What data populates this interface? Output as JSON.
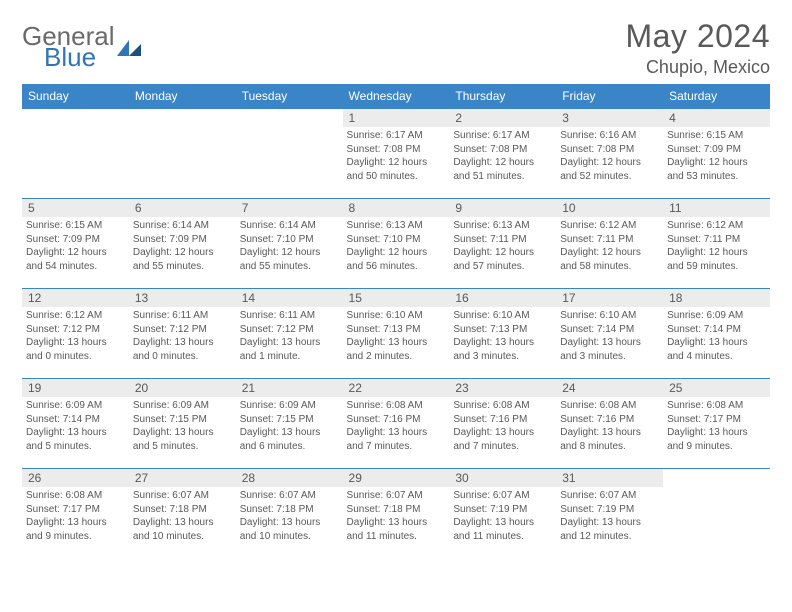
{
  "brand": {
    "general": "General",
    "blue": "Blue"
  },
  "title": "May 2024",
  "location": "Chupio, Mexico",
  "colors": {
    "header_bg": "#3a85c8",
    "header_text": "#ffffff",
    "daynum_bg": "#ececec",
    "border": "#3a85c8",
    "text": "#595959",
    "logo_blue": "#2f76b8"
  },
  "weekdays": [
    "Sunday",
    "Monday",
    "Tuesday",
    "Wednesday",
    "Thursday",
    "Friday",
    "Saturday"
  ],
  "weeks": [
    [
      {
        "empty": true
      },
      {
        "empty": true
      },
      {
        "empty": true
      },
      {
        "day": "1",
        "sunrise": "Sunrise: 6:17 AM",
        "sunset": "Sunset: 7:08 PM",
        "d1": "Daylight: 12 hours",
        "d2": "and 50 minutes."
      },
      {
        "day": "2",
        "sunrise": "Sunrise: 6:17 AM",
        "sunset": "Sunset: 7:08 PM",
        "d1": "Daylight: 12 hours",
        "d2": "and 51 minutes."
      },
      {
        "day": "3",
        "sunrise": "Sunrise: 6:16 AM",
        "sunset": "Sunset: 7:08 PM",
        "d1": "Daylight: 12 hours",
        "d2": "and 52 minutes."
      },
      {
        "day": "4",
        "sunrise": "Sunrise: 6:15 AM",
        "sunset": "Sunset: 7:09 PM",
        "d1": "Daylight: 12 hours",
        "d2": "and 53 minutes."
      }
    ],
    [
      {
        "day": "5",
        "sunrise": "Sunrise: 6:15 AM",
        "sunset": "Sunset: 7:09 PM",
        "d1": "Daylight: 12 hours",
        "d2": "and 54 minutes."
      },
      {
        "day": "6",
        "sunrise": "Sunrise: 6:14 AM",
        "sunset": "Sunset: 7:09 PM",
        "d1": "Daylight: 12 hours",
        "d2": "and 55 minutes."
      },
      {
        "day": "7",
        "sunrise": "Sunrise: 6:14 AM",
        "sunset": "Sunset: 7:10 PM",
        "d1": "Daylight: 12 hours",
        "d2": "and 55 minutes."
      },
      {
        "day": "8",
        "sunrise": "Sunrise: 6:13 AM",
        "sunset": "Sunset: 7:10 PM",
        "d1": "Daylight: 12 hours",
        "d2": "and 56 minutes."
      },
      {
        "day": "9",
        "sunrise": "Sunrise: 6:13 AM",
        "sunset": "Sunset: 7:11 PM",
        "d1": "Daylight: 12 hours",
        "d2": "and 57 minutes."
      },
      {
        "day": "10",
        "sunrise": "Sunrise: 6:12 AM",
        "sunset": "Sunset: 7:11 PM",
        "d1": "Daylight: 12 hours",
        "d2": "and 58 minutes."
      },
      {
        "day": "11",
        "sunrise": "Sunrise: 6:12 AM",
        "sunset": "Sunset: 7:11 PM",
        "d1": "Daylight: 12 hours",
        "d2": "and 59 minutes."
      }
    ],
    [
      {
        "day": "12",
        "sunrise": "Sunrise: 6:12 AM",
        "sunset": "Sunset: 7:12 PM",
        "d1": "Daylight: 13 hours",
        "d2": "and 0 minutes."
      },
      {
        "day": "13",
        "sunrise": "Sunrise: 6:11 AM",
        "sunset": "Sunset: 7:12 PM",
        "d1": "Daylight: 13 hours",
        "d2": "and 0 minutes."
      },
      {
        "day": "14",
        "sunrise": "Sunrise: 6:11 AM",
        "sunset": "Sunset: 7:12 PM",
        "d1": "Daylight: 13 hours",
        "d2": "and 1 minute."
      },
      {
        "day": "15",
        "sunrise": "Sunrise: 6:10 AM",
        "sunset": "Sunset: 7:13 PM",
        "d1": "Daylight: 13 hours",
        "d2": "and 2 minutes."
      },
      {
        "day": "16",
        "sunrise": "Sunrise: 6:10 AM",
        "sunset": "Sunset: 7:13 PM",
        "d1": "Daylight: 13 hours",
        "d2": "and 3 minutes."
      },
      {
        "day": "17",
        "sunrise": "Sunrise: 6:10 AM",
        "sunset": "Sunset: 7:14 PM",
        "d1": "Daylight: 13 hours",
        "d2": "and 3 minutes."
      },
      {
        "day": "18",
        "sunrise": "Sunrise: 6:09 AM",
        "sunset": "Sunset: 7:14 PM",
        "d1": "Daylight: 13 hours",
        "d2": "and 4 minutes."
      }
    ],
    [
      {
        "day": "19",
        "sunrise": "Sunrise: 6:09 AM",
        "sunset": "Sunset: 7:14 PM",
        "d1": "Daylight: 13 hours",
        "d2": "and 5 minutes."
      },
      {
        "day": "20",
        "sunrise": "Sunrise: 6:09 AM",
        "sunset": "Sunset: 7:15 PM",
        "d1": "Daylight: 13 hours",
        "d2": "and 5 minutes."
      },
      {
        "day": "21",
        "sunrise": "Sunrise: 6:09 AM",
        "sunset": "Sunset: 7:15 PM",
        "d1": "Daylight: 13 hours",
        "d2": "and 6 minutes."
      },
      {
        "day": "22",
        "sunrise": "Sunrise: 6:08 AM",
        "sunset": "Sunset: 7:16 PM",
        "d1": "Daylight: 13 hours",
        "d2": "and 7 minutes."
      },
      {
        "day": "23",
        "sunrise": "Sunrise: 6:08 AM",
        "sunset": "Sunset: 7:16 PM",
        "d1": "Daylight: 13 hours",
        "d2": "and 7 minutes."
      },
      {
        "day": "24",
        "sunrise": "Sunrise: 6:08 AM",
        "sunset": "Sunset: 7:16 PM",
        "d1": "Daylight: 13 hours",
        "d2": "and 8 minutes."
      },
      {
        "day": "25",
        "sunrise": "Sunrise: 6:08 AM",
        "sunset": "Sunset: 7:17 PM",
        "d1": "Daylight: 13 hours",
        "d2": "and 9 minutes."
      }
    ],
    [
      {
        "day": "26",
        "sunrise": "Sunrise: 6:08 AM",
        "sunset": "Sunset: 7:17 PM",
        "d1": "Daylight: 13 hours",
        "d2": "and 9 minutes."
      },
      {
        "day": "27",
        "sunrise": "Sunrise: 6:07 AM",
        "sunset": "Sunset: 7:18 PM",
        "d1": "Daylight: 13 hours",
        "d2": "and 10 minutes."
      },
      {
        "day": "28",
        "sunrise": "Sunrise: 6:07 AM",
        "sunset": "Sunset: 7:18 PM",
        "d1": "Daylight: 13 hours",
        "d2": "and 10 minutes."
      },
      {
        "day": "29",
        "sunrise": "Sunrise: 6:07 AM",
        "sunset": "Sunset: 7:18 PM",
        "d1": "Daylight: 13 hours",
        "d2": "and 11 minutes."
      },
      {
        "day": "30",
        "sunrise": "Sunrise: 6:07 AM",
        "sunset": "Sunset: 7:19 PM",
        "d1": "Daylight: 13 hours",
        "d2": "and 11 minutes."
      },
      {
        "day": "31",
        "sunrise": "Sunrise: 6:07 AM",
        "sunset": "Sunset: 7:19 PM",
        "d1": "Daylight: 13 hours",
        "d2": "and 12 minutes."
      },
      {
        "empty": true
      }
    ]
  ]
}
